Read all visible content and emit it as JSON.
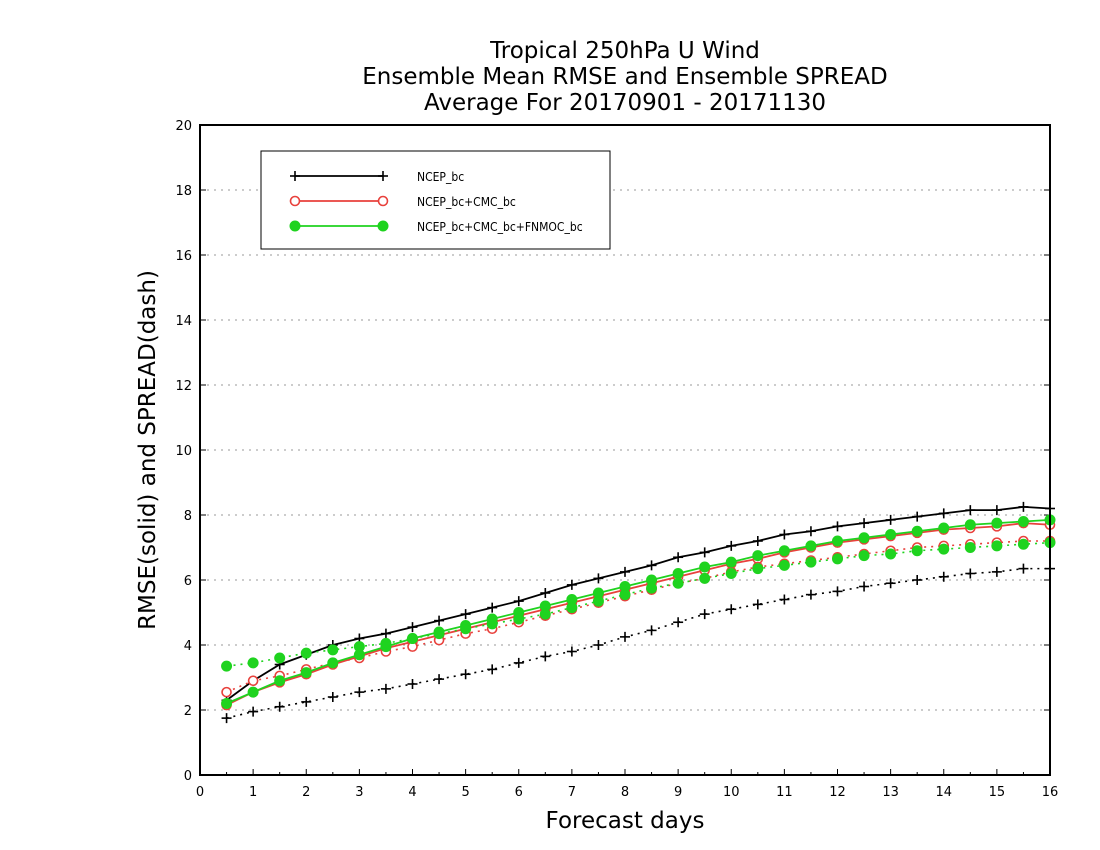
{
  "chart_data": {
    "type": "line",
    "title": [
      "Tropical 250hPa U Wind",
      "Ensemble Mean RMSE and Ensemble SPREAD",
      "Average For 20170901 - 20171130"
    ],
    "xlabel": "Forecast days",
    "ylabel": "RMSE(solid) and SPREAD(dash)",
    "xlim": [
      0,
      16
    ],
    "ylim": [
      0,
      20
    ],
    "xticks": [
      0,
      1,
      2,
      3,
      4,
      5,
      6,
      7,
      8,
      9,
      10,
      11,
      12,
      13,
      14,
      15,
      16
    ],
    "yticks": [
      0,
      2,
      4,
      6,
      8,
      10,
      12,
      14,
      16,
      18,
      20
    ],
    "grid": "horizontal dotted",
    "legend_position": "top-left",
    "x": [
      0.5,
      1,
      1.5,
      2,
      2.5,
      3,
      3.5,
      4,
      4.5,
      5,
      5.5,
      6,
      6.5,
      7,
      7.5,
      8,
      8.5,
      9,
      9.5,
      10,
      10.5,
      11,
      11.5,
      12,
      12.5,
      13,
      13.5,
      14,
      14.5,
      15,
      15.5,
      16
    ],
    "series": [
      {
        "name": "NCEP_bc",
        "color": "#000000",
        "marker": "plus",
        "rmse": [
          2.3,
          2.9,
          3.4,
          3.7,
          4.0,
          4.2,
          4.35,
          4.55,
          4.75,
          4.95,
          5.15,
          5.35,
          5.6,
          5.85,
          6.05,
          6.25,
          6.45,
          6.7,
          6.85,
          7.05,
          7.2,
          7.4,
          7.5,
          7.65,
          7.75,
          7.85,
          7.95,
          8.05,
          8.15,
          8.15,
          8.25,
          8.2
        ],
        "spread": [
          1.75,
          1.95,
          2.1,
          2.25,
          2.4,
          2.55,
          2.65,
          2.8,
          2.95,
          3.1,
          3.25,
          3.45,
          3.65,
          3.8,
          4.0,
          4.25,
          4.45,
          4.7,
          4.95,
          5.1,
          5.25,
          5.4,
          5.55,
          5.65,
          5.8,
          5.9,
          6.0,
          6.1,
          6.2,
          6.25,
          6.35,
          6.35
        ]
      },
      {
        "name": "NCEP_bc+CMC_bc",
        "color": "#e8413c",
        "marker": "open-circle",
        "rmse": [
          2.15,
          2.55,
          2.85,
          3.1,
          3.4,
          3.65,
          3.9,
          4.1,
          4.3,
          4.5,
          4.7,
          4.9,
          5.1,
          5.3,
          5.5,
          5.7,
          5.9,
          6.1,
          6.3,
          6.5,
          6.65,
          6.85,
          7.0,
          7.15,
          7.25,
          7.35,
          7.45,
          7.55,
          7.6,
          7.65,
          7.75,
          7.7
        ],
        "spread": [
          2.55,
          2.9,
          3.05,
          3.25,
          3.45,
          3.6,
          3.8,
          3.95,
          4.15,
          4.35,
          4.5,
          4.7,
          4.9,
          5.1,
          5.3,
          5.5,
          5.7,
          5.9,
          6.05,
          6.25,
          6.4,
          6.5,
          6.6,
          6.7,
          6.8,
          6.9,
          7.0,
          7.05,
          7.1,
          7.15,
          7.2,
          7.2
        ]
      },
      {
        "name": "NCEP_bc+CMC_bc+FNMOC_bc",
        "color": "#1fd31f",
        "marker": "filled-circle",
        "rmse": [
          2.2,
          2.55,
          2.9,
          3.15,
          3.45,
          3.7,
          3.95,
          4.2,
          4.4,
          4.6,
          4.8,
          5.0,
          5.2,
          5.4,
          5.6,
          5.8,
          6.0,
          6.2,
          6.4,
          6.55,
          6.75,
          6.9,
          7.05,
          7.2,
          7.3,
          7.4,
          7.5,
          7.6,
          7.7,
          7.75,
          7.8,
          7.85
        ],
        "spread": [
          3.35,
          3.45,
          3.6,
          3.75,
          3.85,
          3.95,
          4.05,
          4.2,
          4.35,
          4.5,
          4.65,
          4.8,
          4.95,
          5.15,
          5.35,
          5.55,
          5.75,
          5.9,
          6.05,
          6.2,
          6.35,
          6.45,
          6.55,
          6.65,
          6.75,
          6.8,
          6.9,
          6.95,
          7.0,
          7.05,
          7.1,
          7.15
        ]
      }
    ]
  }
}
